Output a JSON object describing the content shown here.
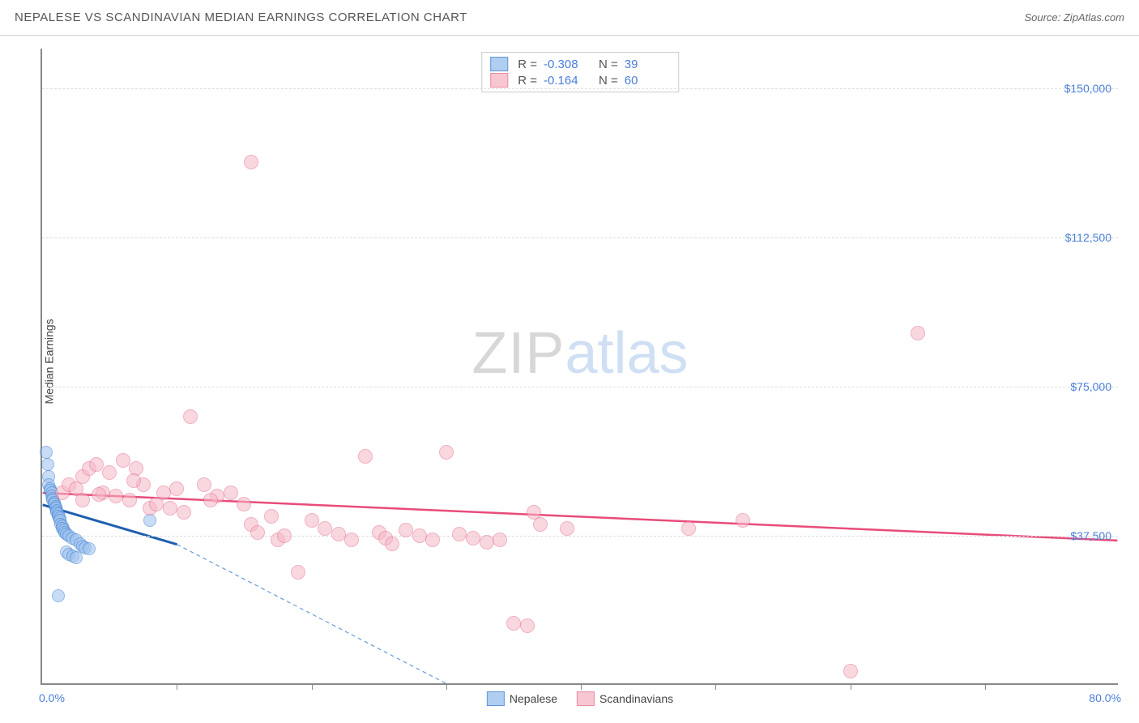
{
  "header": {
    "title": "NEPALESE VS SCANDINAVIAN MEDIAN EARNINGS CORRELATION CHART",
    "source_prefix": "Source: ",
    "source": "ZipAtlas.com"
  },
  "chart": {
    "type": "scatter",
    "ylabel": "Median Earnings",
    "xlim": [
      0,
      80
    ],
    "ylim": [
      0,
      160000
    ],
    "xtick_positions": [
      0,
      10,
      20,
      30,
      40,
      50,
      60,
      70,
      80
    ],
    "xaxis_start_label": "0.0%",
    "xaxis_end_label": "80.0%",
    "ytick_values": [
      37500,
      75000,
      112500,
      150000
    ],
    "ytick_labels": [
      "$37,500",
      "$75,000",
      "$112,500",
      "$150,000"
    ],
    "background_color": "#ffffff",
    "grid_color": "#dddddd",
    "axis_color": "#888888",
    "tick_label_color": "#4a7fd8",
    "watermark": {
      "part1": "ZIP",
      "part2": "atlas"
    },
    "series": [
      {
        "name": "Nepalese",
        "fill": "#9cc2ed",
        "fill_opacity": 0.55,
        "stroke": "#3b7bd1",
        "marker_radius": 8,
        "R": "-0.308",
        "N": "39",
        "trend": {
          "x1": 0,
          "y1": 45000,
          "x2": 10,
          "y2": 35000,
          "color": "#1f5fb0",
          "width": 3,
          "dash": "none"
        },
        "trend_ext": {
          "x1": 10,
          "y1": 35000,
          "x2": 30,
          "y2": 0,
          "color": "#6a9bd8",
          "width": 1.2,
          "dash": "5,4"
        },
        "points": [
          [
            0.3,
            58000
          ],
          [
            0.4,
            55000
          ],
          [
            0.5,
            52000
          ],
          [
            0.5,
            50000
          ],
          [
            0.6,
            49000
          ],
          [
            0.6,
            48500
          ],
          [
            0.7,
            48000
          ],
          [
            0.7,
            47000
          ],
          [
            0.8,
            46500
          ],
          [
            0.8,
            46000
          ],
          [
            0.9,
            45500
          ],
          [
            0.9,
            45000
          ],
          [
            1.0,
            44500
          ],
          [
            1.0,
            44000
          ],
          [
            1.1,
            43500
          ],
          [
            1.1,
            43000
          ],
          [
            1.2,
            42500
          ],
          [
            1.2,
            42000
          ],
          [
            1.3,
            41500
          ],
          [
            1.3,
            41000
          ],
          [
            1.4,
            40000
          ],
          [
            1.5,
            39500
          ],
          [
            1.5,
            39000
          ],
          [
            1.6,
            38500
          ],
          [
            1.7,
            38000
          ],
          [
            1.8,
            37500
          ],
          [
            2.0,
            37000
          ],
          [
            2.2,
            36500
          ],
          [
            2.5,
            36000
          ],
          [
            2.8,
            35000
          ],
          [
            3.0,
            34500
          ],
          [
            3.2,
            34000
          ],
          [
            3.5,
            33800
          ],
          [
            1.8,
            33000
          ],
          [
            2.0,
            32500
          ],
          [
            2.3,
            32000
          ],
          [
            2.5,
            31500
          ],
          [
            8.0,
            41000
          ],
          [
            1.2,
            22000
          ]
        ]
      },
      {
        "name": "Scandinavians",
        "fill": "#f5b8c6",
        "fill_opacity": 0.55,
        "stroke": "#e76f91",
        "marker_radius": 9,
        "R": "-0.164",
        "N": "60",
        "trend": {
          "x1": 0,
          "y1": 48000,
          "x2": 80,
          "y2": 36000,
          "color": "#e84c7a",
          "width": 2.5,
          "dash": "none"
        },
        "points": [
          [
            1.5,
            48000
          ],
          [
            2.0,
            50000
          ],
          [
            2.5,
            49000
          ],
          [
            3.0,
            52000
          ],
          [
            3.5,
            54000
          ],
          [
            4.0,
            55000
          ],
          [
            4.5,
            48000
          ],
          [
            5.0,
            53000
          ],
          [
            5.5,
            47000
          ],
          [
            6.0,
            56000
          ],
          [
            6.5,
            46000
          ],
          [
            7.0,
            54000
          ],
          [
            7.5,
            50000
          ],
          [
            8.0,
            44000
          ],
          [
            8.5,
            45000
          ],
          [
            9.0,
            48000
          ],
          [
            10.0,
            49000
          ],
          [
            10.5,
            43000
          ],
          [
            11.0,
            67000
          ],
          [
            12.0,
            50000
          ],
          [
            13.0,
            47000
          ],
          [
            14.0,
            48000
          ],
          [
            15.0,
            45000
          ],
          [
            15.5,
            40000
          ],
          [
            16.0,
            38000
          ],
          [
            17.0,
            42000
          ],
          [
            17.5,
            36000
          ],
          [
            18.0,
            37000
          ],
          [
            19.0,
            28000
          ],
          [
            20.0,
            41000
          ],
          [
            21.0,
            39000
          ],
          [
            22.0,
            37500
          ],
          [
            23.0,
            36000
          ],
          [
            24.0,
            57000
          ],
          [
            25.0,
            38000
          ],
          [
            25.5,
            36500
          ],
          [
            26.0,
            35000
          ],
          [
            27.0,
            38500
          ],
          [
            28.0,
            37000
          ],
          [
            29.0,
            36000
          ],
          [
            30.0,
            58000
          ],
          [
            31.0,
            37500
          ],
          [
            32.0,
            36500
          ],
          [
            33.0,
            35500
          ],
          [
            34.0,
            36000
          ],
          [
            35.0,
            15000
          ],
          [
            36.0,
            14500
          ],
          [
            37.0,
            40000
          ],
          [
            39.0,
            39000
          ],
          [
            36.5,
            43000
          ],
          [
            48.0,
            39000
          ],
          [
            52.0,
            41000
          ],
          [
            60.0,
            3000
          ],
          [
            65.0,
            88000
          ],
          [
            15.5,
            131000
          ],
          [
            3.0,
            46000
          ],
          [
            4.2,
            47500
          ],
          [
            6.8,
            51000
          ],
          [
            9.5,
            44000
          ],
          [
            12.5,
            46000
          ]
        ]
      }
    ],
    "legend_top": {
      "r_label": "R =",
      "n_label": "N ="
    },
    "legend_bottom": [
      {
        "label": "Nepalese",
        "fill": "#9cc2ed",
        "stroke": "#3b7bd1"
      },
      {
        "label": "Scandinavians",
        "fill": "#f5b8c6",
        "stroke": "#e76f91"
      }
    ]
  }
}
